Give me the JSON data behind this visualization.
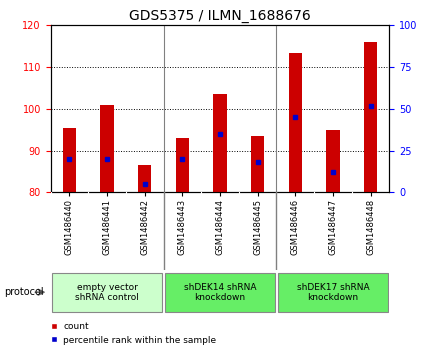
{
  "title": "GDS5375 / ILMN_1688676",
  "samples": [
    "GSM1486440",
    "GSM1486441",
    "GSM1486442",
    "GSM1486443",
    "GSM1486444",
    "GSM1486445",
    "GSM1486446",
    "GSM1486447",
    "GSM1486448"
  ],
  "counts": [
    95.5,
    101.0,
    86.5,
    93.0,
    103.5,
    93.5,
    113.5,
    95.0,
    116.0
  ],
  "percentile_ranks": [
    20,
    20,
    5,
    20,
    35,
    18,
    45,
    12,
    52
  ],
  "ylim_left": [
    80,
    120
  ],
  "ylim_right": [
    0,
    100
  ],
  "yticks_left": [
    80,
    90,
    100,
    110,
    120
  ],
  "yticks_right": [
    0,
    25,
    50,
    75,
    100
  ],
  "bar_color": "#cc0000",
  "dot_color": "#0000cc",
  "background_color": "#ffffff",
  "groups": [
    {
      "label": "empty vector\nshRNA control",
      "start": 0,
      "end": 3,
      "color": "#ccffcc"
    },
    {
      "label": "shDEK14 shRNA\nknockdown",
      "start": 3,
      "end": 6,
      "color": "#66ee66"
    },
    {
      "label": "shDEK17 shRNA\nknockdown",
      "start": 6,
      "end": 9,
      "color": "#66ee66"
    }
  ],
  "protocol_label": "protocol",
  "legend_count_label": "count",
  "legend_percentile_label": "percentile rank within the sample",
  "bar_width": 0.35,
  "title_fontsize": 10,
  "tick_fontsize": 7,
  "sample_fontsize": 6
}
